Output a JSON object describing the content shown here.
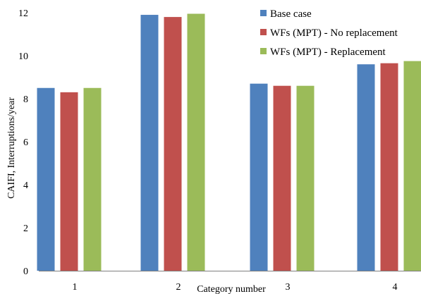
{
  "chart_data": {
    "type": "bar",
    "categories": [
      "1",
      "2",
      "3",
      "4"
    ],
    "series": [
      {
        "name": "Base case",
        "color": "#4F81BD",
        "values": [
          8.5,
          11.9,
          8.7,
          9.6
        ]
      },
      {
        "name": "WFs (MPT) - No replacement",
        "color": "#C0504D",
        "values": [
          8.3,
          11.8,
          8.6,
          9.65
        ]
      },
      {
        "name": "WFs (MPT) - Replacement",
        "color": "#9BBB59",
        "values": [
          8.5,
          11.95,
          8.6,
          9.75
        ]
      }
    ],
    "xlabel": "Category number",
    "ylabel": "CAIFI, Interruptions/year",
    "ylim": [
      0,
      12
    ],
    "yticks": [
      0,
      2,
      4,
      6,
      8,
      10,
      12
    ],
    "grid": false,
    "legend": "top-right"
  }
}
